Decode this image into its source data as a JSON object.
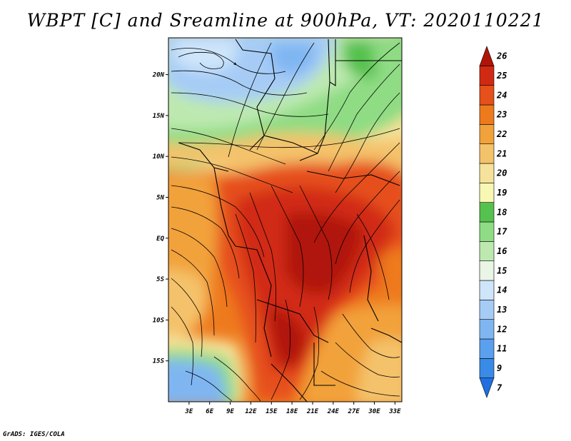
{
  "title": "WBPT [C] and Sreamline at 900hPa, VT: 2020110221",
  "footer": "GrADS: IGES/COLA",
  "map": {
    "lon_range": [
      0,
      34
    ],
    "lat_range": [
      -20,
      24.5
    ],
    "lon_ticks": [
      "3E",
      "6E",
      "9E",
      "12E",
      "15E",
      "18E",
      "21E",
      "24E",
      "27E",
      "30E",
      "33E"
    ],
    "lon_tick_values": [
      3,
      6,
      9,
      12,
      15,
      18,
      21,
      24,
      27,
      30,
      33
    ],
    "lat_ticks": [
      "20N",
      "15N",
      "10N",
      "5N",
      "EQ",
      "5S",
      "10S",
      "15S"
    ],
    "lat_tick_values": [
      20,
      15,
      10,
      5,
      0,
      -5,
      -10,
      -15
    ]
  },
  "colorbar": {
    "labels": [
      "7",
      "9",
      "11",
      "12",
      "13",
      "14",
      "15",
      "16",
      "17",
      "18",
      "19",
      "20",
      "21",
      "22",
      "23",
      "24",
      "25",
      "26"
    ],
    "colors": [
      "#1f6fe0",
      "#3a8ae8",
      "#5aa0ee",
      "#7fb6f2",
      "#a6ccf6",
      "#cfe5fa",
      "#eaf5e6",
      "#bde9b0",
      "#8fdc84",
      "#55c14e",
      "#f8f8b4",
      "#f6e29a",
      "#f4c26a",
      "#f2a23a",
      "#ee7a1e",
      "#e6501a",
      "#d12a12",
      "#b01408"
    ]
  }
}
